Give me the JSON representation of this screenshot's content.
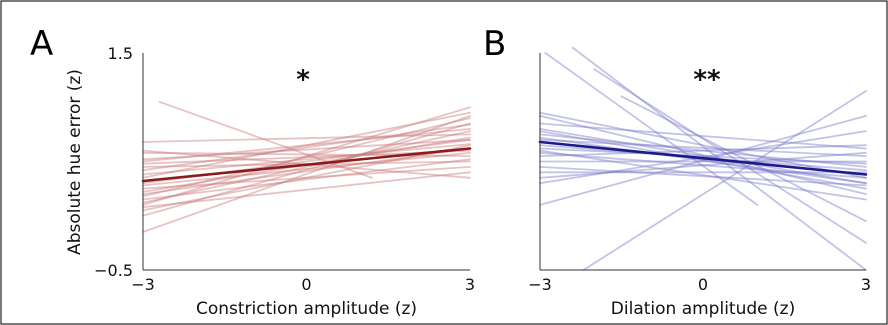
{
  "chart_data": [
    {
      "type": "line",
      "panel_label": "A",
      "significance": "*",
      "xlabel": "Constriction amplitude (z)",
      "ylabel": "Absolute hue error (z)",
      "xlim": [
        -3,
        3
      ],
      "ylim": [
        -0.5,
        1.5
      ],
      "x_ticks": [
        "−3",
        "0",
        "3"
      ],
      "y_ticks": [
        "1.5",
        "−0.5"
      ],
      "grid": false,
      "mean_color": "#8b1a1a",
      "individual_color": "#c97a7a",
      "mean_line": {
        "x": [
          -3,
          3
        ],
        "y": [
          0.32,
          0.62
        ]
      },
      "individual_lines": [
        {
          "x": [
            -3,
            3
          ],
          "y": [
            -0.15,
            0.92
          ]
        },
        {
          "x": [
            -3,
            3
          ],
          "y": [
            0.0,
            0.85
          ]
        },
        {
          "x": [
            -3,
            3
          ],
          "y": [
            0.12,
            0.78
          ]
        },
        {
          "x": [
            -3,
            3
          ],
          "y": [
            0.22,
            0.72
          ]
        },
        {
          "x": [
            -3,
            3
          ],
          "y": [
            0.3,
            0.7
          ]
        },
        {
          "x": [
            -3,
            3
          ],
          "y": [
            0.38,
            0.66
          ]
        },
        {
          "x": [
            -3,
            3
          ],
          "y": [
            0.48,
            0.6
          ]
        },
        {
          "x": [
            -3,
            3
          ],
          "y": [
            0.58,
            0.55
          ]
        },
        {
          "x": [
            -3,
            3
          ],
          "y": [
            0.68,
            0.75
          ]
        },
        {
          "x": [
            -3,
            3
          ],
          "y": [
            0.18,
            0.9
          ]
        },
        {
          "x": [
            -3,
            3
          ],
          "y": [
            0.25,
            0.45
          ]
        },
        {
          "x": [
            -3,
            3
          ],
          "y": [
            0.42,
            0.84
          ]
        },
        {
          "x": [
            -3,
            3
          ],
          "y": [
            0.05,
            0.65
          ]
        },
        {
          "x": [
            -3,
            3
          ],
          "y": [
            0.15,
            0.52
          ]
        },
        {
          "x": [
            -3,
            3
          ],
          "y": [
            0.35,
            0.95
          ]
        },
        {
          "x": [
            -3,
            3
          ],
          "y": [
            0.5,
            0.8
          ]
        },
        {
          "x": [
            -3,
            3
          ],
          "y": [
            0.28,
            0.58
          ]
        },
        {
          "x": [
            -3,
            3
          ],
          "y": [
            0.45,
            0.5
          ]
        },
        {
          "x": [
            -2.7,
            1.2
          ],
          "y": [
            1.05,
            0.35
          ]
        },
        {
          "x": [
            -3,
            3
          ],
          "y": [
            0.6,
            0.35
          ]
        },
        {
          "x": [
            -3,
            3
          ],
          "y": [
            0.1,
            1.0
          ]
        },
        {
          "x": [
            -3,
            3
          ],
          "y": [
            0.2,
            0.62
          ]
        },
        {
          "x": [
            -3,
            3
          ],
          "y": [
            0.52,
            0.7
          ]
        },
        {
          "x": [
            -3,
            3
          ],
          "y": [
            0.08,
            0.4
          ]
        }
      ]
    },
    {
      "type": "line",
      "panel_label": "B",
      "significance": "**",
      "xlabel": "Dilation amplitude (z)",
      "ylabel": "",
      "xlim": [
        -3,
        3
      ],
      "ylim": [
        -0.5,
        1.5
      ],
      "x_ticks": [
        "−3",
        "0",
        "3"
      ],
      "y_ticks": [],
      "grid": false,
      "mean_color": "#1a1a8b",
      "individual_color": "#7a7ac9",
      "mean_line": {
        "x": [
          -3,
          3
        ],
        "y": [
          0.68,
          0.38
        ]
      },
      "individual_lines": [
        {
          "x": [
            -3,
            3
          ],
          "y": [
            0.92,
            0.2
          ]
        },
        {
          "x": [
            -3,
            3
          ],
          "y": [
            0.8,
            0.3
          ]
        },
        {
          "x": [
            -3,
            3
          ],
          "y": [
            0.75,
            0.45
          ]
        },
        {
          "x": [
            -3,
            3
          ],
          "y": [
            0.65,
            0.42
          ]
        },
        {
          "x": [
            -3,
            3
          ],
          "y": [
            0.58,
            0.35
          ]
        },
        {
          "x": [
            -3,
            3
          ],
          "y": [
            0.7,
            0.55
          ]
        },
        {
          "x": [
            -3,
            3
          ],
          "y": [
            0.5,
            0.5
          ]
        },
        {
          "x": [
            -3,
            3
          ],
          "y": [
            0.45,
            0.28
          ]
        },
        {
          "x": [
            -3,
            3
          ],
          "y": [
            0.85,
            0.62
          ]
        },
        {
          "x": [
            -3,
            3
          ],
          "y": [
            0.6,
            0.15
          ]
        },
        {
          "x": [
            -3,
            3
          ],
          "y": [
            0.55,
            0.65
          ]
        },
        {
          "x": [
            -3,
            3
          ],
          "y": [
            0.4,
            0.4
          ]
        },
        {
          "x": [
            -3,
            3
          ],
          "y": [
            0.78,
            0.25
          ]
        },
        {
          "x": [
            -3,
            3
          ],
          "y": [
            0.62,
            0.48
          ]
        },
        {
          "x": [
            -3,
            3
          ],
          "y": [
            0.35,
            0.58
          ]
        },
        {
          "x": [
            -3,
            3
          ],
          "y": [
            0.95,
            0.35
          ]
        },
        {
          "x": [
            -2.4,
            3
          ],
          "y": [
            1.55,
            -0.5
          ]
        },
        {
          "x": [
            -2.0,
            3
          ],
          "y": [
            1.35,
            -0.25
          ]
        },
        {
          "x": [
            -1.5,
            3
          ],
          "y": [
            1.1,
            -0.05
          ]
        },
        {
          "x": [
            -2.9,
            1.0
          ],
          "y": [
            1.5,
            0.1
          ]
        },
        {
          "x": [
            -2.2,
            3
          ],
          "y": [
            -0.5,
            1.15
          ]
        },
        {
          "x": [
            -3,
            3
          ],
          "y": [
            0.1,
            0.92
          ]
        },
        {
          "x": [
            -3,
            3
          ],
          "y": [
            0.3,
            0.78
          ]
        },
        {
          "x": [
            -3,
            3
          ],
          "y": [
            0.72,
            0.3
          ]
        }
      ]
    }
  ]
}
